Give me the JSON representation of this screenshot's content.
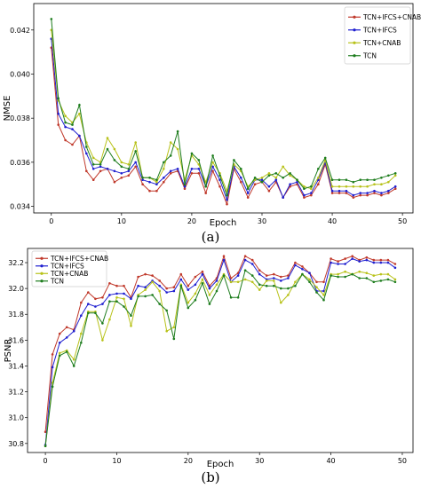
{
  "chart_data": [
    {
      "type": "line",
      "caption": "(a)",
      "xlabel": "Epoch",
      "ylabel": "NMSE",
      "xlim": [
        -2.5,
        51.5
      ],
      "ylim": [
        0.0337,
        0.0432
      ],
      "xticks": [
        "0",
        "10",
        "20",
        "30",
        "40",
        "50"
      ],
      "yticks": [
        "0.034",
        "0.036",
        "0.038",
        "0.040",
        "0.042"
      ],
      "legend_position": "top-right",
      "x": [
        0,
        1,
        2,
        3,
        4,
        5,
        6,
        7,
        8,
        9,
        10,
        11,
        12,
        13,
        14,
        15,
        16,
        17,
        18,
        19,
        20,
        21,
        22,
        23,
        24,
        25,
        26,
        27,
        28,
        29,
        30,
        31,
        32,
        33,
        34,
        35,
        36,
        37,
        38,
        39,
        40,
        41,
        42,
        43,
        44,
        45,
        46,
        47,
        48,
        49
      ],
      "series": [
        {
          "name": "TCN+IFCS+CNAB",
          "color": "#c0392b",
          "values": [
            0.0412,
            0.0377,
            0.037,
            0.0368,
            0.0372,
            0.0356,
            0.0352,
            0.0356,
            0.0357,
            0.0351,
            0.0353,
            0.0354,
            0.0358,
            0.035,
            0.0347,
            0.0347,
            0.0351,
            0.0355,
            0.0356,
            0.0348,
            0.0355,
            0.0355,
            0.0346,
            0.0356,
            0.0349,
            0.0341,
            0.0357,
            0.0351,
            0.0344,
            0.035,
            0.0351,
            0.0347,
            0.0351,
            0.0344,
            0.0349,
            0.035,
            0.0344,
            0.0345,
            0.035,
            0.0359,
            0.0346,
            0.0346,
            0.0346,
            0.0344,
            0.0345,
            0.0345,
            0.0346,
            0.0345,
            0.0346,
            0.0348
          ]
        },
        {
          "name": "TCN+IFCS",
          "color": "#1f1fd0",
          "values": [
            0.0416,
            0.0382,
            0.0376,
            0.0375,
            0.0372,
            0.0364,
            0.0357,
            0.0358,
            0.0357,
            0.0356,
            0.0355,
            0.0356,
            0.036,
            0.0352,
            0.0351,
            0.035,
            0.0353,
            0.0356,
            0.0357,
            0.0349,
            0.0357,
            0.0357,
            0.0349,
            0.0358,
            0.0352,
            0.0343,
            0.0358,
            0.0353,
            0.0346,
            0.0352,
            0.0352,
            0.0349,
            0.0352,
            0.0344,
            0.035,
            0.0351,
            0.0345,
            0.0346,
            0.0352,
            0.036,
            0.0347,
            0.0347,
            0.0347,
            0.0345,
            0.0346,
            0.0346,
            0.0347,
            0.0346,
            0.0347,
            0.0349
          ]
        },
        {
          "name": "TCN+CNAB",
          "color": "#b8c21a",
          "values": [
            0.042,
            0.0388,
            0.0381,
            0.0378,
            0.0382,
            0.0369,
            0.0362,
            0.036,
            0.0371,
            0.0366,
            0.036,
            0.0359,
            0.0369,
            0.0353,
            0.0353,
            0.0351,
            0.0357,
            0.0369,
            0.0366,
            0.0352,
            0.0363,
            0.0359,
            0.0351,
            0.036,
            0.0355,
            0.0347,
            0.0359,
            0.0356,
            0.0349,
            0.0352,
            0.0353,
            0.0355,
            0.0353,
            0.0358,
            0.0354,
            0.0352,
            0.0349,
            0.0348,
            0.0353,
            0.0361,
            0.0349,
            0.0349,
            0.0349,
            0.0349,
            0.0349,
            0.0349,
            0.035,
            0.035,
            0.0351,
            0.0354
          ]
        },
        {
          "name": "TCN",
          "color": "#1e7d1e",
          "values": [
            0.0425,
            0.0389,
            0.0378,
            0.0377,
            0.0386,
            0.0367,
            0.0359,
            0.0359,
            0.0366,
            0.0361,
            0.0358,
            0.0357,
            0.0365,
            0.0353,
            0.0353,
            0.0352,
            0.036,
            0.0363,
            0.0374,
            0.035,
            0.0364,
            0.0361,
            0.0349,
            0.0363,
            0.0354,
            0.0345,
            0.0361,
            0.0357,
            0.0348,
            0.0353,
            0.0351,
            0.0354,
            0.0355,
            0.0353,
            0.0355,
            0.0352,
            0.0348,
            0.0349,
            0.0357,
            0.0362,
            0.0352,
            0.0352,
            0.0352,
            0.0351,
            0.0352,
            0.0352,
            0.0352,
            0.0353,
            0.0354,
            0.0355
          ]
        }
      ]
    },
    {
      "type": "line",
      "caption": "(b)",
      "xlabel": "Epoch",
      "ylabel": "PSNR",
      "xlim": [
        -2.5,
        51.5
      ],
      "ylim": [
        30.73,
        32.31
      ],
      "xticks": [
        "0",
        "10",
        "20",
        "30",
        "40",
        "50"
      ],
      "yticks": [
        "30.8",
        "31.0",
        "31.2",
        "31.4",
        "31.6",
        "31.8",
        "32.0",
        "32.2"
      ],
      "legend_position": "top-left",
      "x": [
        0,
        1,
        2,
        3,
        4,
        5,
        6,
        7,
        8,
        9,
        10,
        11,
        12,
        13,
        14,
        15,
        16,
        17,
        18,
        19,
        20,
        21,
        22,
        23,
        24,
        25,
        26,
        27,
        28,
        29,
        30,
        31,
        32,
        33,
        34,
        35,
        36,
        37,
        38,
        39,
        40,
        41,
        42,
        43,
        44,
        45,
        46,
        47,
        48,
        49
      ],
      "series": [
        {
          "name": "TCN+IFCS+CNAB",
          "color": "#c0392b",
          "values": [
            30.89,
            31.49,
            31.65,
            31.7,
            31.68,
            31.89,
            31.97,
            31.92,
            31.93,
            32.04,
            32.02,
            32.02,
            31.93,
            32.09,
            32.11,
            32.1,
            32.06,
            32.0,
            32.01,
            32.11,
            32.02,
            32.09,
            32.13,
            32.02,
            32.08,
            32.25,
            32.08,
            32.12,
            32.25,
            32.22,
            32.14,
            32.1,
            32.11,
            32.09,
            32.1,
            32.2,
            32.17,
            32.12,
            32.05,
            32.05,
            32.23,
            32.21,
            32.23,
            32.25,
            32.22,
            32.24,
            32.22,
            32.22,
            32.22,
            32.19
          ]
        },
        {
          "name": "TCN+IFCS",
          "color": "#1f1fd0",
          "values": [
            30.79,
            31.39,
            31.58,
            31.62,
            31.67,
            31.79,
            31.88,
            31.86,
            31.88,
            31.95,
            31.96,
            31.96,
            31.92,
            32.02,
            32.01,
            32.06,
            32.02,
            31.97,
            31.98,
            32.07,
            31.99,
            32.03,
            32.11,
            32.0,
            32.06,
            32.22,
            32.05,
            32.1,
            32.22,
            32.19,
            32.11,
            32.07,
            32.08,
            32.06,
            32.08,
            32.18,
            32.15,
            32.12,
            31.98,
            31.98,
            32.2,
            32.19,
            32.19,
            32.23,
            32.21,
            32.22,
            32.2,
            32.2,
            32.2,
            32.16
          ]
        },
        {
          "name": "TCN+CNAB",
          "color": "#b8c21a",
          "values": [
            30.78,
            31.27,
            31.5,
            31.52,
            31.45,
            31.65,
            31.82,
            31.82,
            31.6,
            31.76,
            31.93,
            31.92,
            31.71,
            31.95,
            31.99,
            32.05,
            31.98,
            31.67,
            31.7,
            32.03,
            31.89,
            31.96,
            32.07,
            31.95,
            32.03,
            32.11,
            32.05,
            32.05,
            32.07,
            32.05,
            31.99,
            32.06,
            32.06,
            31.89,
            31.95,
            32.05,
            32.11,
            32.07,
            32.01,
            31.95,
            32.11,
            32.11,
            32.13,
            32.11,
            32.13,
            32.12,
            32.1,
            32.11,
            32.11,
            32.07
          ]
        },
        {
          "name": "TCN",
          "color": "#1e7d1e",
          "values": [
            30.78,
            31.24,
            31.48,
            31.51,
            31.4,
            31.58,
            31.81,
            31.81,
            31.73,
            31.9,
            31.9,
            31.86,
            31.79,
            31.94,
            31.94,
            31.95,
            31.88,
            31.83,
            31.61,
            32.02,
            31.85,
            31.91,
            32.04,
            31.88,
            31.98,
            32.1,
            31.93,
            31.93,
            32.14,
            32.1,
            32.03,
            32.02,
            32.02,
            32.0,
            32.0,
            32.02,
            32.11,
            32.05,
            31.97,
            31.91,
            32.1,
            32.09,
            32.09,
            32.11,
            32.08,
            32.08,
            32.05,
            32.06,
            32.07,
            32.05
          ]
        }
      ]
    }
  ]
}
